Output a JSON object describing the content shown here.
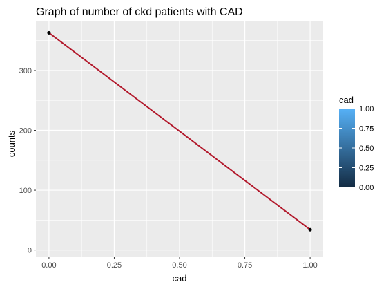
{
  "chart_data": {
    "type": "line",
    "title": "Graph of number of ckd patients with CAD",
    "xlabel": "cad",
    "ylabel": "counts",
    "x": [
      0,
      1
    ],
    "y": [
      363,
      34
    ],
    "xlim": [
      -0.05,
      1.05
    ],
    "ylim": [
      -12,
      382
    ],
    "x_ticks": [
      0,
      0.25,
      0.5,
      0.75,
      1
    ],
    "x_tick_labels": [
      "0.00",
      "0.25",
      "0.50",
      "0.75",
      "1.00"
    ],
    "y_ticks": [
      0,
      100,
      200,
      300
    ],
    "y_tick_labels": [
      "0",
      "100",
      "200",
      "300"
    ],
    "grid": true,
    "background": "#ebebeb",
    "line_color": "#b2182b",
    "point_color": "#000000",
    "legend": {
      "title": "cad",
      "placement": "right",
      "type": "colorbar",
      "labels": [
        "1.00",
        "0.75",
        "0.50",
        "0.25",
        "0.00"
      ],
      "low_color": "#132b43",
      "high_color": "#56b1f7"
    }
  }
}
